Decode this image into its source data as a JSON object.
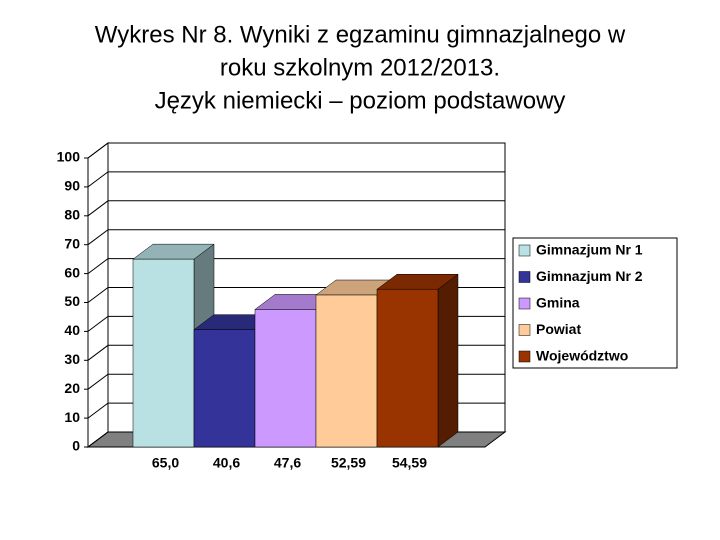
{
  "chart_data": {
    "type": "bar3d",
    "title": [
      "Wykres Nr 8. Wyniki z egzaminu gimnazjalnego   w",
      "roku szkolnym 2012/2013.",
      "Język niemiecki – poziom podstawowy"
    ],
    "series": [
      {
        "name": "Gimnazjum Nr 1",
        "color": "#b9e0e3",
        "values": [
          65.0
        ],
        "value_labels": [
          "65,0"
        ]
      },
      {
        "name": "Gimnazjum Nr 2",
        "color": "#333399",
        "values": [
          40.6
        ],
        "value_labels": [
          "40,6"
        ]
      },
      {
        "name": "Gmina",
        "color": "#cc99ff",
        "values": [
          47.6
        ],
        "value_labels": [
          "47,6"
        ]
      },
      {
        "name": "Powiat",
        "color": "#ffcc99",
        "values": [
          52.59
        ],
        "value_labels": [
          "52,59"
        ]
      },
      {
        "name": "Województwo",
        "color": "#993300",
        "values": [
          54.59
        ],
        "value_labels": [
          "54,59"
        ]
      }
    ],
    "ylim": [
      0,
      100
    ],
    "yticks": [
      0,
      10,
      20,
      30,
      40,
      50,
      60,
      70,
      80,
      90,
      100
    ],
    "grid": true,
    "legend": "right"
  }
}
